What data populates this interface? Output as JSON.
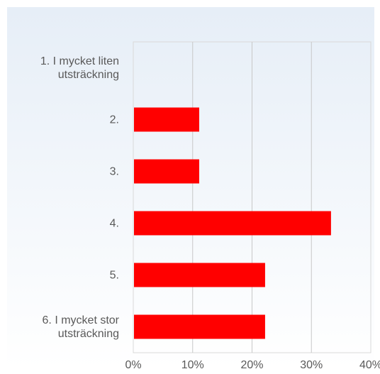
{
  "chart_data": {
    "type": "bar",
    "orientation": "horizontal",
    "categories": [
      "1. I mycket liten\nutsträckning",
      "2.",
      "3.",
      "4.",
      "5.",
      "6. I mycket stor\nutsträckning"
    ],
    "values": [
      0,
      11.1,
      11.1,
      33.3,
      22.2,
      22.2
    ],
    "xlim": [
      0,
      40
    ],
    "xticks": [
      "0%",
      "10%",
      "20%",
      "30%",
      "40%"
    ],
    "grid": true,
    "bar_color": "#ff0000",
    "plot_background": "#e8f0f8",
    "grid_color": "#c8c8c8"
  }
}
